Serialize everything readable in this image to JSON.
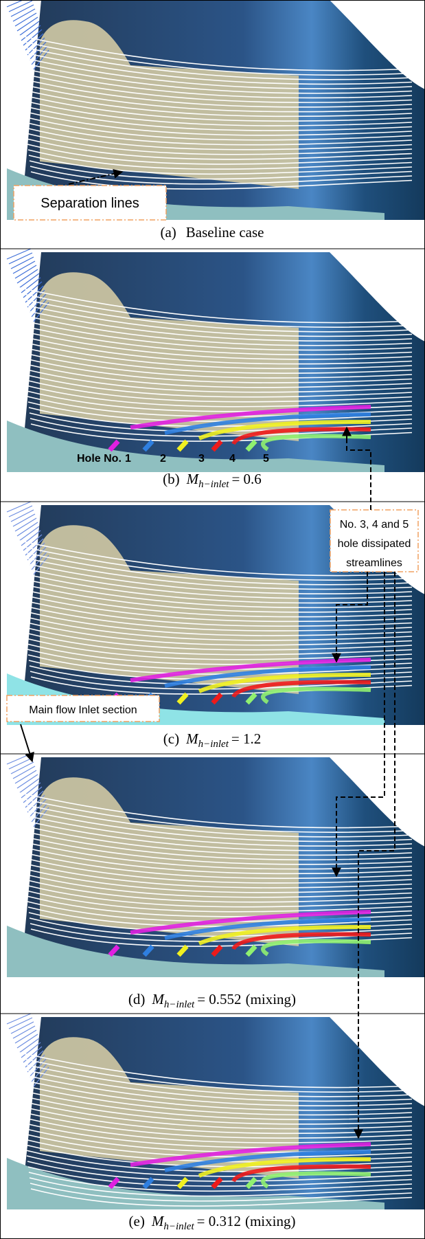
{
  "panels": [
    {
      "caption": {
        "label": "(a)",
        "text": "Baseline case"
      }
    },
    {
      "caption": {
        "label": "(b)",
        "symbol": "M",
        "subscript": "h−inlet",
        "value": "= 0.6"
      }
    },
    {
      "caption": {
        "label": "(c)",
        "symbol": "M",
        "subscript": "h−inlet",
        "value": "= 1.2"
      }
    },
    {
      "caption": {
        "label": "(d)",
        "symbol": "M",
        "subscript": "h−inlet",
        "value": "= 0.552",
        "suffix": "(mixing)"
      }
    },
    {
      "caption": {
        "label": "(e)",
        "symbol": "M",
        "subscript": "h−inlet",
        "value": "= 0.312",
        "suffix": "(mixing)"
      }
    }
  ],
  "annotations": {
    "separation": "Separation lines",
    "hole_no": "Hole No.",
    "holes": [
      "1",
      "2",
      "3",
      "4",
      "5"
    ],
    "dissipated": [
      "No. 3, 4 and 5",
      "hole dissipated",
      "streamlines"
    ],
    "inlet": "Main flow Inlet section"
  }
}
